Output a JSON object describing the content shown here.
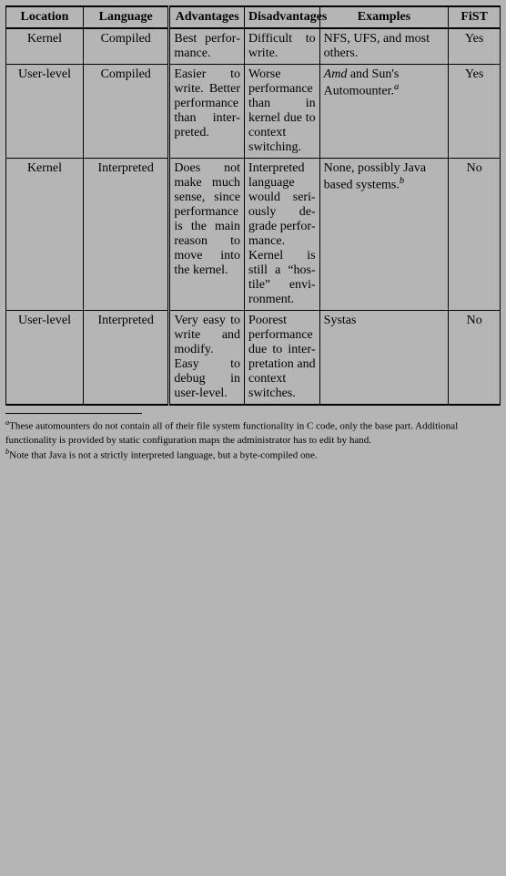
{
  "headers": {
    "location": "Location",
    "language": "Language",
    "advantages": "Advantages",
    "disadvantages": "Disadvantages",
    "examples": "Examples",
    "fist": "FiST"
  },
  "rows": [
    {
      "location": "Kernel",
      "language": "Compiled",
      "advantages": "Best perfor­mance.",
      "disadvantages": "Difficult to write.",
      "examples": "NFS, UFS, and most others.",
      "fist": "Yes"
    },
    {
      "location": "User-level",
      "language": "Compiled",
      "advantages": "Easier to write. Better perfor­mance than inter­preted.",
      "disadvantages": "Worse perfor­mance than in kernel due to context switch­ing.",
      "examples_html": "<span class=\"ital\">Amd</span> and Sun's Automounter.<sup>a</sup>",
      "fist": "Yes"
    },
    {
      "location": "Kernel",
      "language": "Interpreted",
      "advantages": "Does not make much sense, since perfor­mance is the main rea­son to move into the kernel.",
      "disadvantages": "Interpreted lan­guage would seri­ously de­grade perfor­mance. Kernel is still a “hos­tile” envi­ron­ment.",
      "examples_html": "None, possibly Java based sys­tems.<sup>b</sup>",
      "fist": "No"
    },
    {
      "location": "User-level",
      "language": "Interpreted",
      "advantages": "Very easy to write and modify. Easy to debug in user-level.",
      "disadvantages": "Poorest perfor­mance due to inter­pre­tation and context switches.",
      "examples": "Systas",
      "fist": "No"
    }
  ],
  "footnotes": {
    "a": "These automounters do not contain all of their file system functionality in C code, only the base part. Additional functionality is provided by static configuration maps the administrator has to edit by hand.",
    "b": "Note that Java is not a strictly interpreted language, but a byte-compiled one."
  }
}
